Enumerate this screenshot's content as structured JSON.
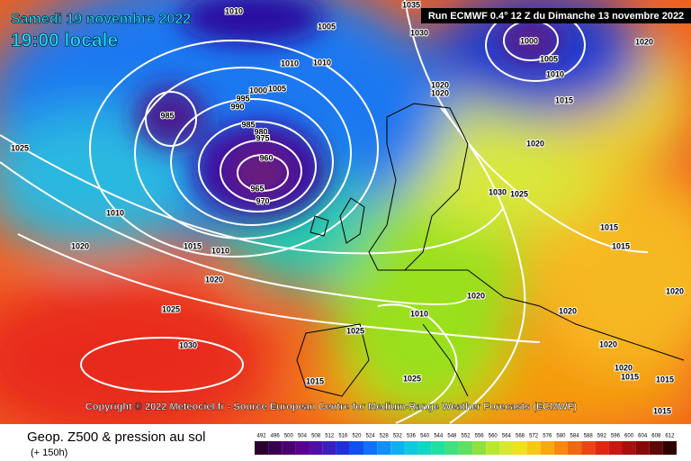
{
  "header": {
    "date": "Samedi 19 novembre 2022",
    "time": "19:00 locale",
    "run": "Run ECMWF 0.4° 12 Z du Dimanche 13 novembre 2022"
  },
  "isobar_labels": [
    "1010",
    "1035",
    "1005",
    "1030",
    "1000",
    "1020",
    "1010",
    "1010",
    "1005",
    "1010",
    "995",
    "990",
    "1000",
    "1005",
    "1020",
    "1020",
    "1015",
    "985",
    "985",
    "980",
    "975",
    "1025",
    "1020",
    "960",
    "965",
    "970",
    "1030",
    "1025",
    "1010",
    "1020",
    "1015",
    "1010",
    "1015",
    "1015",
    "1020",
    "1020",
    "1020",
    "1025",
    "1020",
    "1010",
    "1025",
    "1030",
    "1020",
    "1020",
    "1015",
    "1015",
    "1025",
    "1015",
    "1015"
  ],
  "copyright": "Copyright © 2022 Meteociel.fr - Source European Centre for Medium-Range Weather Forecasts (ECMWF)",
  "footer": {
    "title": "Geop. Z500 & pression au sol",
    "subtitle": "(+ 150h)"
  },
  "colorbar": {
    "ticks": [
      492,
      496,
      500,
      504,
      508,
      512,
      516,
      520,
      524,
      528,
      532,
      536,
      540,
      544,
      548,
      552,
      556,
      560,
      564,
      568,
      572,
      576,
      580,
      584,
      588,
      592,
      596,
      600,
      604,
      608,
      612
    ]
  }
}
